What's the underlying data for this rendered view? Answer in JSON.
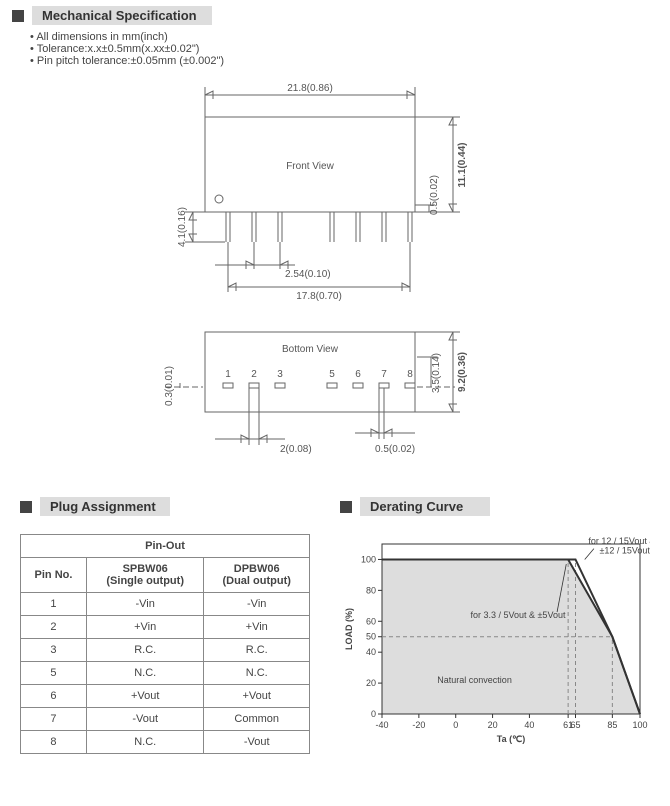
{
  "mechSpec": {
    "title": "Mechanical Specification",
    "notes": [
      "All dimensions in mm(inch)",
      "Tolerance:x.x±0.5mm(x.xx±0.02\")",
      "Pin pitch tolerance:±0.05mm (±0.002\")"
    ],
    "front": {
      "label": "Front View",
      "width_dim": "21.8(0.86)",
      "height_dim": "11.1(0.44)",
      "shoulder_dim": "0.5(0.02)",
      "pin_len_dim": "4.1(0.16)",
      "pitch_dim": "2.54(0.10)",
      "span_dim": "17.8(0.70)"
    },
    "bottom": {
      "label": "Bottom  View",
      "height_dim": "9.2(0.36)",
      "row_dim": "3.5(0.14)",
      "edge_dim": "0.3(0.01)",
      "pad_w_dim": "2(0.08)",
      "pad_gap_dim": "0.5(0.02)",
      "pins": [
        "1",
        "2",
        "3",
        "5",
        "6",
        "7",
        "8"
      ]
    }
  },
  "plug": {
    "title": "Plug Assignment",
    "table": {
      "header_main": "Pin-Out",
      "cols": [
        "Pin No.",
        "SPBW06\n(Single output)",
        "DPBW06\n(Dual output)"
      ],
      "rows": [
        [
          "1",
          "-Vin",
          "-Vin"
        ],
        [
          "2",
          "+Vin",
          "+Vin"
        ],
        [
          "3",
          "R.C.",
          "R.C."
        ],
        [
          "5",
          "N.C.",
          "N.C."
        ],
        [
          "6",
          "+Vout",
          "+Vout"
        ],
        [
          "7",
          "-Vout",
          "Common"
        ],
        [
          "8",
          "N.C.",
          "-Vout"
        ]
      ]
    }
  },
  "derating": {
    "title": "Derating Curve",
    "xlabel": "Ta (℃)",
    "ylabel": "LOAD (%)",
    "note_top": "for 12 / 15Vout  &\n±12 / 15Vout",
    "note_mid": "for 3.3 / 5Vout  & ±5Vout",
    "note_conv": "Natural convection",
    "xlim": [
      -40,
      100
    ],
    "ylim": [
      0,
      110
    ],
    "yticks": [
      0,
      20,
      40,
      50,
      60,
      80,
      100
    ],
    "xticks": [
      -40,
      -20,
      0,
      20,
      40,
      61,
      65,
      85,
      100
    ],
    "xtick_labels": [
      "-40",
      "-20",
      "0",
      "20",
      "40",
      "61",
      "65",
      "85",
      "100"
    ],
    "series1_12v": {
      "points": [
        [
          -40,
          100
        ],
        [
          65,
          100
        ],
        [
          85,
          50
        ],
        [
          100,
          0
        ]
      ],
      "color": "#333"
    },
    "series2_5v": {
      "points": [
        [
          -40,
          100
        ],
        [
          61,
          100
        ],
        [
          85,
          50
        ],
        [
          100,
          0
        ]
      ],
      "color": "#333"
    },
    "background_color": "#ffffff",
    "shade_color": "#dddddd"
  }
}
